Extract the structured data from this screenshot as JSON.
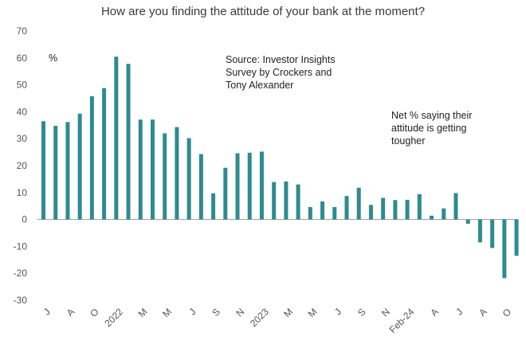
{
  "chart_data": {
    "type": "bar",
    "title": "How are you finding the attitude of your bank at the moment?",
    "unit_label": "%",
    "annotations": {
      "source": "Source: Investor Insights\nSurvey by Crockers and\nTony Alexander",
      "series_note": "Net % saying their\nattitude is getting\ntougher"
    },
    "ylim": [
      -30,
      70
    ],
    "yticks": [
      -30,
      -20,
      -10,
      0,
      10,
      20,
      30,
      40,
      50,
      60,
      70
    ],
    "x_tick_labels": [
      {
        "index": 0,
        "label": "J"
      },
      {
        "index": 2,
        "label": "A"
      },
      {
        "index": 4,
        "label": "O"
      },
      {
        "index": 6,
        "label": "2022"
      },
      {
        "index": 8,
        "label": "M"
      },
      {
        "index": 10,
        "label": "M"
      },
      {
        "index": 12,
        "label": "J"
      },
      {
        "index": 14,
        "label": "S"
      },
      {
        "index": 16,
        "label": "N"
      },
      {
        "index": 18,
        "label": "2023"
      },
      {
        "index": 20,
        "label": "M"
      },
      {
        "index": 22,
        "label": "M"
      },
      {
        "index": 24,
        "label": "J"
      },
      {
        "index": 26,
        "label": "S"
      },
      {
        "index": 28,
        "label": "N"
      },
      {
        "index": 30,
        "label": "Feb-24"
      },
      {
        "index": 32,
        "label": "A"
      },
      {
        "index": 34,
        "label": "J"
      },
      {
        "index": 36,
        "label": "A"
      },
      {
        "index": 38,
        "label": "O"
      }
    ],
    "values": [
      36.5,
      34.8,
      36.2,
      39.3,
      45.8,
      48.8,
      60.5,
      57.8,
      37.1,
      37.1,
      32.0,
      34.3,
      30.2,
      24.3,
      9.7,
      19.2,
      24.6,
      24.8,
      25.2,
      13.9,
      14.1,
      13.0,
      4.6,
      6.7,
      4.6,
      8.7,
      11.8,
      5.4,
      8.0,
      7.2,
      7.3,
      9.4,
      1.4,
      4.1,
      9.8,
      -1.6,
      -8.5,
      -10.6,
      -21.8,
      -13.5
    ],
    "bar_color": "#2e8b8f",
    "grid": false
  }
}
